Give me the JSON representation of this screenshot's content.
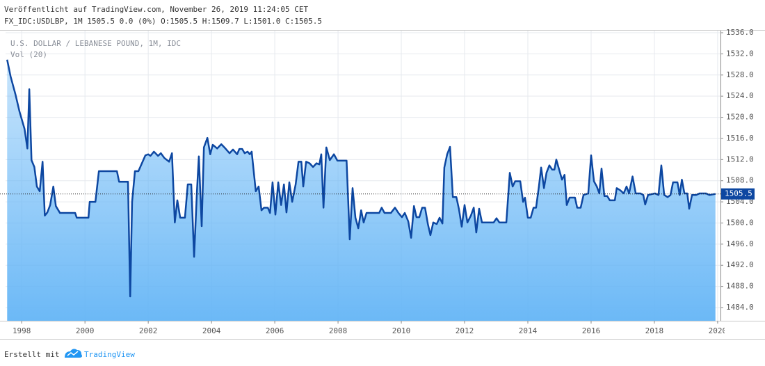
{
  "header": {
    "published": "Veröffentlicht auf TradingView.com, November 26, 2019 11:24:05 CET",
    "symbol_info": "FX_IDC:USDLBP, 1M 1505.5 0.0 (0%) O:1505.5 H:1509.7 L:1501.0 C:1505.5"
  },
  "footer": {
    "text": "Erstellt mit",
    "brand": "TradingView"
  },
  "chart_data": {
    "type": "area",
    "title": "U.S. DOLLAR / LEBANESE POUND, 1M, IDC",
    "subtitle": "Vol (20)",
    "color": "#0d47a1",
    "fill_color": "#64b5f6",
    "x": [
      1997.54,
      1997.65,
      1997.8,
      1997.93,
      1998.09,
      1998.18,
      1998.24,
      1998.31,
      1998.4,
      1998.48,
      1998.57,
      1998.66,
      1998.73,
      1998.81,
      1998.9,
      1999.0,
      1999.08,
      1999.21,
      1999.69,
      1999.74,
      2000.11,
      2000.15,
      2000.33,
      2000.44,
      2001.01,
      2001.08,
      2001.36,
      2001.43,
      2001.49,
      2001.58,
      2001.69,
      2001.91,
      2002.0,
      2002.07,
      2002.18,
      2002.31,
      2002.4,
      2002.51,
      2002.66,
      2002.75,
      2002.84,
      2002.92,
      2003.01,
      2003.16,
      2003.25,
      2003.36,
      2003.45,
      2003.54,
      2003.6,
      2003.69,
      2003.76,
      2003.87,
      2003.96,
      2004.04,
      2004.18,
      2004.31,
      2004.44,
      2004.57,
      2004.68,
      2004.81,
      2004.88,
      2004.97,
      2005.05,
      2005.14,
      2005.21,
      2005.27,
      2005.4,
      2005.49,
      2005.58,
      2005.66,
      2005.78,
      2005.85,
      2005.93,
      2006.02,
      2006.11,
      2006.2,
      2006.29,
      2006.37,
      2006.46,
      2006.55,
      2006.66,
      2006.75,
      2006.84,
      2006.9,
      2006.99,
      2007.1,
      2007.21,
      2007.32,
      2007.41,
      2007.47,
      2007.54,
      2007.63,
      2007.74,
      2007.87,
      2007.98,
      2008.27,
      2008.37,
      2008.46,
      2008.55,
      2008.64,
      2008.73,
      2008.81,
      2008.9,
      2009.3,
      2009.38,
      2009.47,
      2009.67,
      2009.8,
      2009.91,
      2010.02,
      2010.11,
      2010.22,
      2010.31,
      2010.4,
      2010.48,
      2010.57,
      2010.66,
      2010.75,
      2010.84,
      2010.92,
      2011.01,
      2011.12,
      2011.21,
      2011.3,
      2011.36,
      2011.45,
      2011.54,
      2011.63,
      2011.74,
      2011.82,
      2011.91,
      2012.0,
      2012.09,
      2012.2,
      2012.29,
      2012.37,
      2012.46,
      2012.55,
      2012.92,
      2013.01,
      2013.1,
      2013.32,
      2013.43,
      2013.52,
      2013.6,
      2013.76,
      2013.85,
      2013.91,
      2014.0,
      2014.09,
      2014.18,
      2014.26,
      2014.35,
      2014.42,
      2014.51,
      2014.59,
      2014.68,
      2014.77,
      2014.84,
      2014.9,
      2014.99,
      2015.08,
      2015.16,
      2015.23,
      2015.32,
      2015.49,
      2015.56,
      2015.67,
      2015.76,
      2015.91,
      2016.0,
      2016.09,
      2016.18,
      2016.26,
      2016.33,
      2016.42,
      2016.51,
      2016.59,
      2016.75,
      2016.81,
      2016.92,
      2017.03,
      2017.12,
      2017.2,
      2017.31,
      2017.41,
      2017.56,
      2017.65,
      2017.71,
      2017.8,
      2018.02,
      2018.13,
      2018.22,
      2018.31,
      2018.42,
      2018.51,
      2018.59,
      2018.73,
      2018.8,
      2018.87,
      2018.95,
      2019.04,
      2019.1,
      2019.19,
      2019.32,
      2019.43,
      2019.63,
      2019.74,
      2019.93
    ],
    "values": [
      1530.9,
      1527.7,
      1524.4,
      1521.1,
      1517.8,
      1514.1,
      1525.3,
      1511.9,
      1510.6,
      1506.9,
      1506.0,
      1511.6,
      1501.4,
      1502.0,
      1503.4,
      1506.9,
      1503.2,
      1501.9,
      1501.9,
      1501.0,
      1501.0,
      1504.0,
      1504.0,
      1509.8,
      1509.8,
      1507.8,
      1507.8,
      1486.1,
      1504.0,
      1509.8,
      1509.8,
      1512.8,
      1513.0,
      1512.7,
      1513.5,
      1512.7,
      1513.2,
      1512.3,
      1511.6,
      1513.2,
      1500.1,
      1504.3,
      1501.0,
      1501.0,
      1507.3,
      1507.3,
      1493.6,
      1506.0,
      1512.6,
      1499.4,
      1514.3,
      1516.1,
      1513.0,
      1514.8,
      1514.1,
      1514.9,
      1514.1,
      1513.2,
      1513.9,
      1513.0,
      1514.0,
      1514.0,
      1513.2,
      1513.5,
      1513.0,
      1513.5,
      1506.0,
      1506.9,
      1502.4,
      1502.9,
      1502.9,
      1501.9,
      1507.7,
      1501.6,
      1507.7,
      1503.4,
      1507.3,
      1502.0,
      1507.7,
      1504.0,
      1507.3,
      1511.6,
      1511.6,
      1506.9,
      1511.6,
      1511.3,
      1510.6,
      1511.3,
      1511.1,
      1513.0,
      1502.9,
      1514.3,
      1511.9,
      1513.0,
      1511.8,
      1511.8,
      1496.9,
      1506.6,
      1501.0,
      1499.0,
      1502.4,
      1500.1,
      1501.9,
      1501.9,
      1502.9,
      1501.9,
      1501.9,
      1502.9,
      1501.9,
      1501.1,
      1501.9,
      1500.3,
      1497.2,
      1503.2,
      1501.1,
      1501.1,
      1502.9,
      1502.9,
      1499.8,
      1497.7,
      1500.1,
      1499.8,
      1501.0,
      1499.9,
      1510.5,
      1513.0,
      1514.4,
      1504.9,
      1504.9,
      1502.7,
      1499.3,
      1503.4,
      1500.1,
      1501.4,
      1502.9,
      1498.2,
      1502.7,
      1500.1,
      1500.1,
      1500.9,
      1500.1,
      1500.1,
      1509.5,
      1506.9,
      1507.9,
      1507.9,
      1504.0,
      1504.8,
      1501.0,
      1501.0,
      1502.9,
      1502.9,
      1506.9,
      1510.5,
      1506.6,
      1509.5,
      1510.9,
      1510.1,
      1510.1,
      1512.0,
      1510.1,
      1508.2,
      1509.1,
      1503.4,
      1504.8,
      1504.8,
      1502.9,
      1502.9,
      1505.3,
      1505.6,
      1512.8,
      1507.9,
      1506.9,
      1505.6,
      1510.3,
      1505.1,
      1505.1,
      1504.3,
      1504.3,
      1506.6,
      1506.2,
      1505.6,
      1506.9,
      1505.6,
      1508.8,
      1505.6,
      1505.6,
      1505.3,
      1503.5,
      1505.3,
      1505.6,
      1505.3,
      1510.9,
      1505.3,
      1504.9,
      1505.3,
      1507.7,
      1507.7,
      1505.3,
      1508.2,
      1505.6,
      1505.6,
      1502.7,
      1505.3,
      1505.3,
      1505.6,
      1505.6,
      1505.3,
      1505.5
    ],
    "last_price": 1505.5,
    "xlim": [
      1997.49,
      2020.09
    ],
    "ylim": [
      1481.5,
      1536.4
    ],
    "xticks": [
      1998,
      2000,
      2002,
      2004,
      2006,
      2008,
      2010,
      2012,
      2014,
      2016,
      2018,
      2020
    ],
    "yticks": [
      {
        "value": 1484,
        "label": "1484.0"
      },
      {
        "value": 1488,
        "label": "1488.0"
      },
      {
        "value": 1492,
        "label": "1492.0"
      },
      {
        "value": 1496,
        "label": "1496.0"
      },
      {
        "value": 1500,
        "label": "1500.0"
      },
      {
        "value": 1504,
        "label": "1504.0"
      },
      {
        "value": 1508,
        "label": "1508.0"
      },
      {
        "value": 1512,
        "label": "1512.0"
      },
      {
        "value": 1516,
        "label": "1516.0"
      },
      {
        "value": 1520,
        "label": "1520.0"
      },
      {
        "value": 1524,
        "label": "1524.0"
      },
      {
        "value": 1528,
        "label": "1528.0"
      },
      {
        "value": 1532,
        "label": "1532.0"
      },
      {
        "value": 1536,
        "label": "1536.0"
      }
    ],
    "grid": true
  }
}
